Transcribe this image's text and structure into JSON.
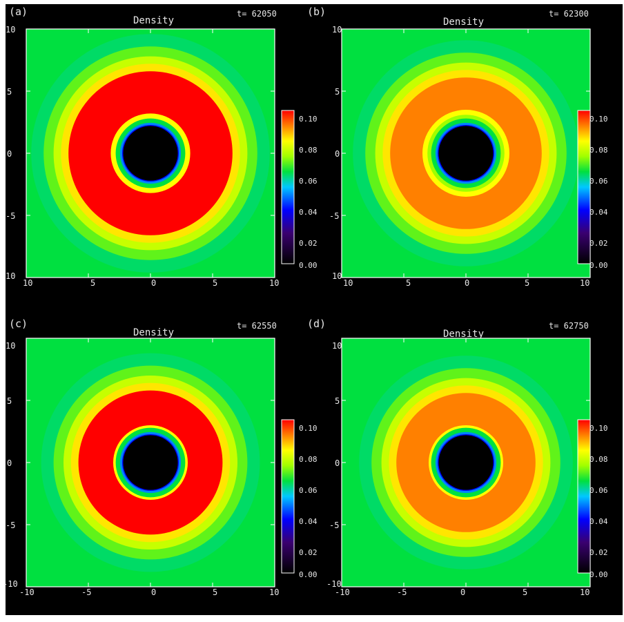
{
  "figure": {
    "panels": [
      {
        "letter": "(a)",
        "title": "Density",
        "time": "t= 62050",
        "cbar_ticks": [
          "0.10",
          "0.08",
          "0.06",
          "0.04",
          "0.02",
          "0.00"
        ],
        "xticks": [
          "10",
          "5",
          "0",
          "5",
          "10"
        ],
        "yticks": [
          "10",
          "5",
          "0",
          "-5",
          "10"
        ]
      },
      {
        "letter": "(b)",
        "title": "Density",
        "time": "t= 62300",
        "cbar_ticks": [
          "0.10",
          "0.08",
          "0.06",
          "0.04",
          "0.02",
          "0.00"
        ],
        "xticks": [
          "10",
          "5",
          "0",
          "5",
          "10"
        ],
        "yticks": [
          "10",
          "5",
          "0",
          "-5",
          "10"
        ]
      },
      {
        "letter": "(c)",
        "title": "Density",
        "time": "t= 62550",
        "cbar_ticks": [
          "0.10",
          "0.08",
          "0.06",
          "0.04",
          "0.02",
          "0.00"
        ],
        "xticks": [
          "-10",
          "-5",
          "0",
          "5",
          "10"
        ],
        "yticks": [
          "10",
          "5",
          "0",
          "-5",
          "-10"
        ]
      },
      {
        "letter": "(d)",
        "title": "Density",
        "time": "t= 62750",
        "cbar_ticks": [
          "0.10",
          "0.08",
          "0.06",
          "0.04",
          "0.02",
          "0.00"
        ],
        "xticks": [
          "-10",
          "-5",
          "0",
          "5",
          "10"
        ],
        "yticks": [
          "10",
          "5",
          "0",
          "-5",
          "-10"
        ]
      }
    ]
  },
  "chart_data": [
    {
      "type": "heatmap",
      "title": "Density",
      "label": "(a)",
      "time": "t= 62050",
      "xlim": [
        -10,
        10
      ],
      "ylim": [
        -10,
        10
      ],
      "colorbar_range": [
        0.0,
        0.1
      ],
      "colorscale": [
        "#000000",
        "#3a0070",
        "#0000ff",
        "#00c8ff",
        "#00ff00",
        "#ffff00",
        "#ff8000",
        "#ff0000"
      ],
      "central_hole_radius": 2.2,
      "dense_ring": {
        "inner_radius": 3.2,
        "outer_radius": 7.0,
        "peak_density": 0.1
      }
    },
    {
      "type": "heatmap",
      "title": "Density",
      "label": "(b)",
      "time": "t= 62300",
      "xlim": [
        -10,
        10
      ],
      "ylim": [
        -10,
        10
      ],
      "colorbar_range": [
        0.0,
        0.1
      ],
      "colorscale": [
        "#000000",
        "#3a0070",
        "#0000ff",
        "#00c8ff",
        "#00ff00",
        "#ffff00",
        "#ff8000",
        "#ff0000"
      ],
      "central_hole_radius": 2.2,
      "dense_ring": {
        "inner_radius": 3.5,
        "outer_radius": 6.5,
        "peak_density": 0.09
      }
    },
    {
      "type": "heatmap",
      "title": "Density",
      "label": "(c)",
      "time": "t= 62550",
      "xlim": [
        -10,
        10
      ],
      "ylim": [
        -10,
        10
      ],
      "colorbar_range": [
        0.0,
        0.1
      ],
      "colorscale": [
        "#000000",
        "#3a0070",
        "#0000ff",
        "#00c8ff",
        "#00ff00",
        "#ffff00",
        "#ff8000",
        "#ff0000"
      ],
      "central_hole_radius": 2.2,
      "dense_ring": {
        "inner_radius": 3.0,
        "outer_radius": 6.2,
        "peak_density": 0.1
      }
    },
    {
      "type": "heatmap",
      "title": "Density",
      "label": "(d)",
      "time": "t= 62750",
      "xlim": [
        -10,
        10
      ],
      "ylim": [
        -10,
        10
      ],
      "colorbar_range": [
        0.0,
        0.1
      ],
      "colorscale": [
        "#000000",
        "#3a0070",
        "#0000ff",
        "#00c8ff",
        "#00ff00",
        "#ffff00",
        "#ff8000",
        "#ff0000"
      ],
      "central_hole_radius": 2.2,
      "dense_ring": {
        "inner_radius": 3.0,
        "outer_radius": 6.0,
        "peak_density": 0.09
      }
    }
  ]
}
